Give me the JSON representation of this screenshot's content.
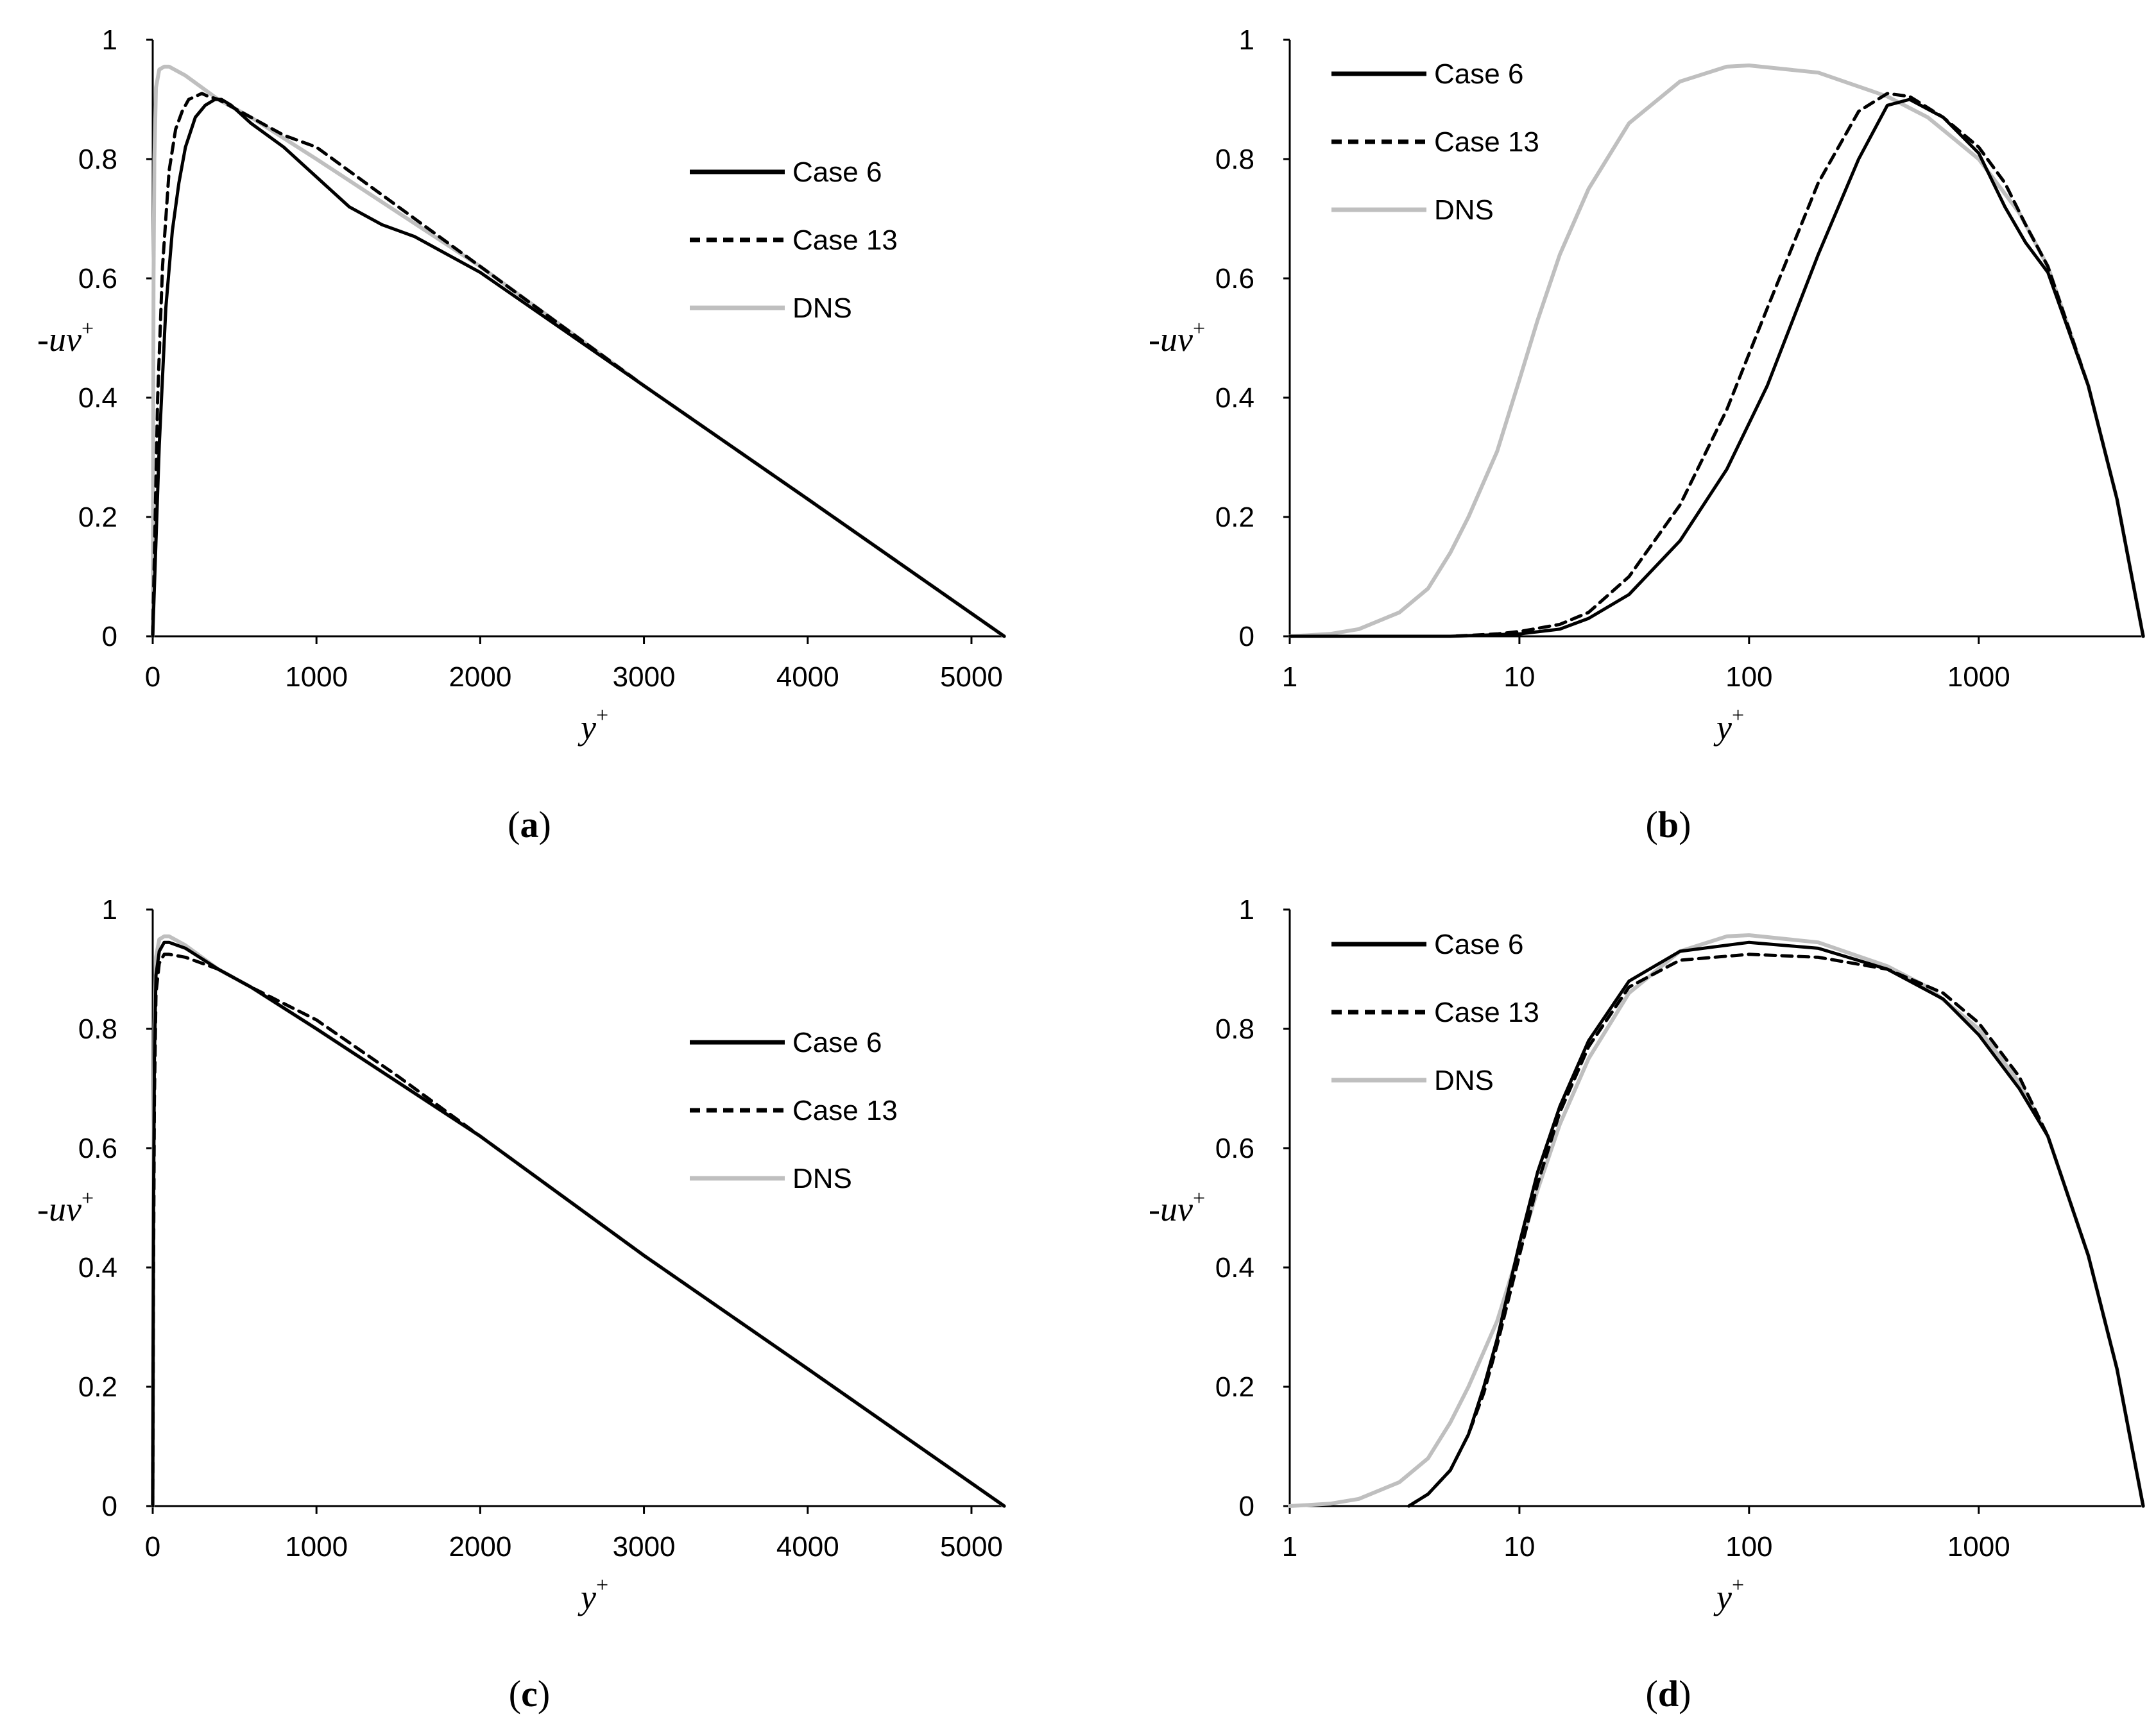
{
  "figure": {
    "series_styles": {
      "Case 6": {
        "color": "#000000",
        "dash": "none"
      },
      "Case 13": {
        "color": "#000000",
        "dash": "dashed"
      },
      "DNS": {
        "color": "#bfbfbf",
        "dash": "none"
      }
    }
  },
  "chart_data": [
    {
      "id": "a",
      "type": "line",
      "panel_label": {
        "open": "(",
        "letter": "a",
        "close": ")"
      },
      "xscale": "linear",
      "xlim": [
        0,
        5200
      ],
      "ylim": [
        0,
        1
      ],
      "xticks": [
        "0",
        "1000",
        "2000",
        "3000",
        "4000",
        "5000"
      ],
      "xtick_values": [
        0,
        1000,
        2000,
        3000,
        4000,
        5000
      ],
      "yticks": [
        "0",
        "0.2",
        "0.4",
        "0.6",
        "0.8",
        "1"
      ],
      "ytick_values": [
        0,
        0.2,
        0.4,
        0.6,
        0.8,
        1
      ],
      "xlabel": {
        "main": "y",
        "sup": "+"
      },
      "ylabel": {
        "main": "-uv",
        "sup": "+"
      },
      "legend_position": "upper-right",
      "series": [
        {
          "name": "Case 6",
          "x": [
            0,
            40,
            80,
            120,
            160,
            200,
            260,
            320,
            380,
            420,
            480,
            600,
            800,
            1000,
            1200,
            1400,
            1600,
            1800,
            2000,
            3000,
            4000,
            5200
          ],
          "y": [
            0,
            0.32,
            0.55,
            0.68,
            0.76,
            0.82,
            0.87,
            0.89,
            0.9,
            0.9,
            0.89,
            0.86,
            0.82,
            0.77,
            0.72,
            0.69,
            0.67,
            0.64,
            0.61,
            0.42,
            0.23,
            0
          ]
        },
        {
          "name": "Case 13",
          "x": [
            0,
            30,
            60,
            100,
            140,
            180,
            220,
            260,
            300,
            340,
            400,
            600,
            800,
            1000,
            1200,
            1400,
            1600,
            1800,
            2000,
            3000,
            4000,
            5200
          ],
          "y": [
            0,
            0.4,
            0.62,
            0.78,
            0.85,
            0.88,
            0.9,
            0.905,
            0.91,
            0.905,
            0.9,
            0.87,
            0.84,
            0.82,
            0.78,
            0.74,
            0.7,
            0.66,
            0.62,
            0.42,
            0.23,
            0
          ]
        },
        {
          "name": "DNS",
          "x": [
            0,
            5,
            10,
            20,
            40,
            70,
            100,
            200,
            400,
            600,
            1000,
            1500,
            2000,
            3000,
            4000,
            5200
          ],
          "y": [
            0,
            0.6,
            0.8,
            0.92,
            0.95,
            0.955,
            0.955,
            0.94,
            0.9,
            0.87,
            0.8,
            0.71,
            0.62,
            0.42,
            0.23,
            0
          ]
        }
      ]
    },
    {
      "id": "b",
      "type": "line",
      "panel_label": {
        "open": "(",
        "letter": "b",
        "close": ")"
      },
      "xscale": "log",
      "xlim": [
        1,
        5200
      ],
      "ylim": [
        0,
        1
      ],
      "xticks": [
        "1",
        "10",
        "100",
        "1000"
      ],
      "xtick_values": [
        1,
        10,
        100,
        1000
      ],
      "yticks": [
        "0",
        "0.2",
        "0.4",
        "0.6",
        "0.8",
        "1"
      ],
      "ytick_values": [
        0,
        0.2,
        0.4,
        0.6,
        0.8,
        1
      ],
      "xlabel": {
        "main": "y",
        "sup": "+"
      },
      "ylabel": {
        "main": "-uv",
        "sup": "+"
      },
      "legend_position": "upper-left",
      "series": [
        {
          "name": "Case 6",
          "x": [
            1,
            5,
            10,
            15,
            20,
            30,
            50,
            80,
            120,
            200,
            300,
            400,
            500,
            700,
            1000,
            1300,
            1600,
            2000,
            3000,
            4000,
            5200
          ],
          "y": [
            0,
            0,
            0.004,
            0.012,
            0.03,
            0.07,
            0.16,
            0.28,
            0.42,
            0.64,
            0.8,
            0.89,
            0.9,
            0.87,
            0.81,
            0.72,
            0.66,
            0.61,
            0.42,
            0.23,
            0
          ]
        },
        {
          "name": "Case 13",
          "x": [
            1,
            5,
            8,
            10,
            15,
            20,
            30,
            50,
            80,
            120,
            200,
            300,
            400,
            500,
            700,
            1000,
            1300,
            1600,
            2000,
            3000,
            4000,
            5200
          ],
          "y": [
            0,
            0,
            0.004,
            0.008,
            0.02,
            0.04,
            0.1,
            0.22,
            0.38,
            0.55,
            0.76,
            0.88,
            0.91,
            0.905,
            0.87,
            0.82,
            0.76,
            0.69,
            0.62,
            0.42,
            0.23,
            0
          ]
        },
        {
          "name": "DNS",
          "x": [
            1,
            1.5,
            2,
            3,
            4,
            5,
            6,
            8,
            10,
            12,
            15,
            20,
            30,
            50,
            80,
            100,
            200,
            400,
            600,
            1000,
            1500,
            2000,
            3000,
            4000,
            5200
          ],
          "y": [
            0,
            0.004,
            0.012,
            0.04,
            0.08,
            0.14,
            0.2,
            0.31,
            0.43,
            0.53,
            0.64,
            0.75,
            0.86,
            0.93,
            0.955,
            0.957,
            0.945,
            0.905,
            0.87,
            0.8,
            0.71,
            0.62,
            0.42,
            0.23,
            0
          ]
        }
      ]
    },
    {
      "id": "c",
      "type": "line",
      "panel_label": {
        "open": "(",
        "letter": "c",
        "close": ")"
      },
      "xscale": "linear",
      "xlim": [
        0,
        5200
      ],
      "ylim": [
        0,
        1
      ],
      "xticks": [
        "0",
        "1000",
        "2000",
        "3000",
        "4000",
        "5000"
      ],
      "xtick_values": [
        0,
        1000,
        2000,
        3000,
        4000,
        5000
      ],
      "yticks": [
        "0",
        "0.2",
        "0.4",
        "0.6",
        "0.8",
        "1"
      ],
      "ytick_values": [
        0,
        0.2,
        0.4,
        0.6,
        0.8,
        1
      ],
      "xlabel": {
        "main": "y",
        "sup": "+"
      },
      "ylabel": {
        "main": "-uv",
        "sup": "+"
      },
      "legend_position": "upper-right",
      "series": [
        {
          "name": "Case 6",
          "x": [
            0,
            5,
            10,
            20,
            40,
            70,
            100,
            200,
            400,
            600,
            1000,
            1500,
            2000,
            3000,
            4000,
            5200
          ],
          "y": [
            0,
            0.5,
            0.75,
            0.89,
            0.93,
            0.945,
            0.945,
            0.935,
            0.9,
            0.87,
            0.8,
            0.71,
            0.62,
            0.42,
            0.23,
            0
          ]
        },
        {
          "name": "Case 13",
          "x": [
            0,
            5,
            10,
            20,
            40,
            70,
            100,
            200,
            400,
            600,
            1000,
            1500,
            2000,
            3000,
            4000,
            5200
          ],
          "y": [
            0,
            0.4,
            0.68,
            0.86,
            0.91,
            0.925,
            0.925,
            0.92,
            0.9,
            0.87,
            0.815,
            0.72,
            0.62,
            0.42,
            0.23,
            0
          ]
        },
        {
          "name": "DNS",
          "x": [
            0,
            5,
            10,
            20,
            40,
            70,
            100,
            200,
            400,
            600,
            1000,
            1500,
            2000,
            3000,
            4000,
            5200
          ],
          "y": [
            0,
            0.6,
            0.8,
            0.92,
            0.95,
            0.955,
            0.955,
            0.94,
            0.9,
            0.87,
            0.8,
            0.71,
            0.62,
            0.42,
            0.23,
            0
          ]
        }
      ]
    },
    {
      "id": "d",
      "type": "line",
      "panel_label": {
        "open": "(",
        "letter": "d",
        "close": ")"
      },
      "xscale": "log",
      "xlim": [
        1,
        5200
      ],
      "ylim": [
        0,
        1
      ],
      "xticks": [
        "1",
        "10",
        "100",
        "1000"
      ],
      "xtick_values": [
        1,
        10,
        100,
        1000
      ],
      "yticks": [
        "0",
        "0.2",
        "0.4",
        "0.6",
        "0.8",
        "1"
      ],
      "ytick_values": [
        0,
        0.2,
        0.4,
        0.6,
        0.8,
        1
      ],
      "xlabel": {
        "main": "y",
        "sup": "+"
      },
      "ylabel": {
        "main": "-uv",
        "sup": "+"
      },
      "legend_position": "upper-left",
      "series": [
        {
          "name": "Case 6",
          "x": [
            3.3,
            4,
            5,
            6,
            7,
            8,
            10,
            12,
            15,
            20,
            30,
            50,
            100,
            200,
            400,
            700,
            1000,
            1500,
            2000,
            3000,
            4000,
            5200
          ],
          "y": [
            0,
            0.02,
            0.06,
            0.12,
            0.2,
            0.28,
            0.44,
            0.56,
            0.67,
            0.78,
            0.88,
            0.93,
            0.945,
            0.935,
            0.9,
            0.85,
            0.79,
            0.7,
            0.62,
            0.42,
            0.23,
            0
          ]
        },
        {
          "name": "Case 13",
          "x": [
            3.3,
            4,
            5,
            6,
            7,
            8,
            10,
            12,
            15,
            20,
            30,
            50,
            100,
            200,
            400,
            700,
            1000,
            1500,
            2000,
            3000,
            4000,
            5200
          ],
          "y": [
            0,
            0.02,
            0.06,
            0.12,
            0.19,
            0.27,
            0.42,
            0.54,
            0.66,
            0.77,
            0.87,
            0.915,
            0.925,
            0.92,
            0.9,
            0.86,
            0.81,
            0.72,
            0.62,
            0.42,
            0.23,
            0
          ]
        },
        {
          "name": "DNS",
          "x": [
            1,
            1.5,
            2,
            3,
            4,
            5,
            6,
            8,
            10,
            12,
            15,
            20,
            30,
            50,
            80,
            100,
            200,
            400,
            600,
            1000,
            1500,
            2000,
            3000,
            4000,
            5200
          ],
          "y": [
            0,
            0.004,
            0.012,
            0.04,
            0.08,
            0.14,
            0.2,
            0.31,
            0.43,
            0.53,
            0.64,
            0.75,
            0.86,
            0.93,
            0.955,
            0.957,
            0.945,
            0.905,
            0.87,
            0.8,
            0.71,
            0.62,
            0.42,
            0.23,
            0
          ]
        }
      ]
    }
  ]
}
